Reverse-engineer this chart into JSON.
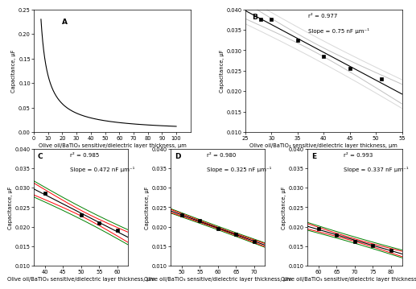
{
  "panel_A": {
    "label": "A",
    "xlabel": "Olive oil/BaTiO₃ sensitive/dielectric layer thickness, µm",
    "ylabel": "Capacitance, µF",
    "xlim": [
      0,
      110
    ],
    "ylim": [
      0.0,
      0.25
    ],
    "yticks": [
      0.0,
      0.05,
      0.1,
      0.15,
      0.2,
      0.25
    ],
    "xticks": [
      0,
      10,
      20,
      30,
      40,
      50,
      60,
      70,
      80,
      90,
      100
    ],
    "k": 1.15
  },
  "panel_B": {
    "label": "B",
    "annotation_line1": "r² = 0.977",
    "annotation_line2": "Slope = 0.75 nF µm⁻¹",
    "x_data": [
      28,
      30,
      35,
      40,
      45,
      51
    ],
    "y_data": [
      0.0375,
      0.0375,
      0.0325,
      0.0285,
      0.0255,
      0.023
    ],
    "xlabel": "Olive oil/BaTiO₃ sensitive/dielectric layer thickness, µm",
    "ylabel": "Capacitance, µF",
    "xlim": [
      25,
      55
    ],
    "ylim": [
      0.01,
      0.04
    ],
    "yticks": [
      0.01,
      0.015,
      0.02,
      0.025,
      0.03,
      0.035,
      0.04
    ],
    "xticks": [
      25,
      30,
      35,
      40,
      45,
      50,
      55
    ],
    "band_color1": "#d0d0d0",
    "band_color2": "#e8e8e8"
  },
  "panel_C": {
    "label": "C",
    "annotation_line1": "r² = 0.985",
    "annotation_line2": "Slope = 0.472 nF µm⁻¹",
    "x_data": [
      40,
      50,
      55,
      60
    ],
    "y_data": [
      0.0285,
      0.023,
      0.021,
      0.019
    ],
    "xlabel": "Olive oil/BaTiO₃ sensitive/dielectric layer thickness, µm",
    "ylabel": "Capacitance, µF",
    "xlim": [
      37,
      63
    ],
    "ylim": [
      0.01,
      0.04
    ],
    "yticks": [
      0.01,
      0.015,
      0.02,
      0.025,
      0.03,
      0.035,
      0.04
    ],
    "xticks": [
      40,
      45,
      50,
      55,
      60
    ],
    "conf_color": "red",
    "pred_color": "green"
  },
  "panel_D": {
    "label": "D",
    "annotation_line1": "r² = 0.980",
    "annotation_line2": "Slope = 0.325 nF µm⁻¹",
    "x_data": [
      50,
      55,
      60,
      65,
      70
    ],
    "y_data": [
      0.023,
      0.0215,
      0.0195,
      0.018,
      0.0163
    ],
    "xlabel": "Olive oil/BaTiO₃ sensitive/dielectric layer thickness, µm",
    "ylabel": "Capacitance, µF",
    "xlim": [
      47,
      73
    ],
    "ylim": [
      0.01,
      0.04
    ],
    "yticks": [
      0.01,
      0.015,
      0.02,
      0.025,
      0.03,
      0.035,
      0.04
    ],
    "xticks": [
      50,
      55,
      60,
      65,
      70
    ],
    "conf_color": "red",
    "pred_color": "green"
  },
  "panel_E": {
    "label": "E",
    "annotation_line1": "r² = 0.993",
    "annotation_line2": "Slope = 0.337 nF µm⁻¹",
    "x_data": [
      60,
      65,
      70,
      75,
      80
    ],
    "y_data": [
      0.0195,
      0.0178,
      0.0163,
      0.0152,
      0.014
    ],
    "xlabel": "Olive oil/BaTiO₃ sensitive/dielectric layer thickness, µm",
    "ylabel": "Capacitance, µF",
    "xlim": [
      57,
      83
    ],
    "ylim": [
      0.01,
      0.04
    ],
    "yticks": [
      0.01,
      0.015,
      0.02,
      0.025,
      0.03,
      0.035,
      0.04
    ],
    "xticks": [
      60,
      65,
      70,
      75,
      80
    ],
    "conf_color": "red",
    "pred_color": "green"
  },
  "figure_bg": "#ffffff",
  "axes_bg": "#ffffff",
  "marker_style": "s",
  "marker_size": 3,
  "marker_color": "#000000",
  "font_size": 5.5,
  "label_font_size": 4.8,
  "tick_font_size": 4.8,
  "annot_font_size": 5.0
}
